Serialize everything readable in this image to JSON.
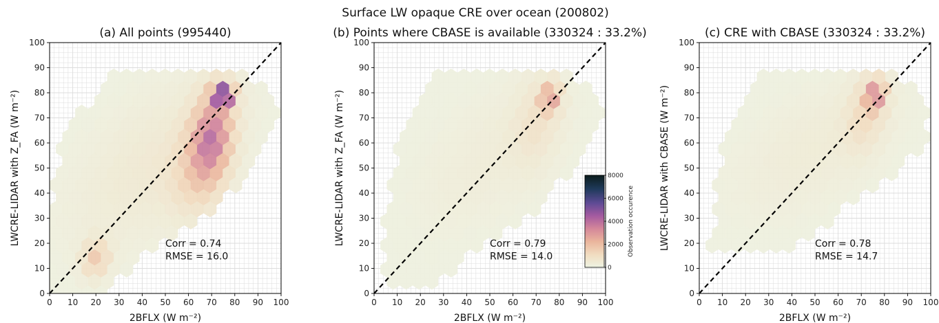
{
  "figure": {
    "suptitle": "Surface LW opaque CRE over ocean (200802)"
  },
  "colorbar": {
    "label": "Observation occurence",
    "ticks": [
      0,
      2000,
      4000,
      6000,
      8000
    ],
    "vmin": 0,
    "vmax": 8000
  },
  "colors": {
    "colormap": [
      "#eef3e2",
      "#f1dcc0",
      "#eab59c",
      "#d4879a",
      "#a45aa0",
      "#5d4a94",
      "#1f3a5b",
      "#0b1c1c"
    ],
    "reference_line": "#000000",
    "grid": "#dcdcdc"
  },
  "chart_data": [
    {
      "type": "heatmap",
      "subtype": "hexbin",
      "title": "(a) All points (995440)",
      "xlabel": "2BFLX (W m⁻²)",
      "ylabel": "LWCRE-LIDAR with Z_FA (W m⁻²)",
      "xlim": [
        0,
        100
      ],
      "ylim": [
        0,
        100
      ],
      "xticks": [
        "0",
        "10",
        "20",
        "30",
        "40",
        "50",
        "60",
        "70",
        "80",
        "90",
        "100"
      ],
      "yticks": [
        "0",
        "10",
        "20",
        "30",
        "40",
        "50",
        "60",
        "70",
        "80",
        "90",
        "100"
      ],
      "grid": true,
      "reference_line": "y = x (dashed)",
      "stats": {
        "corr": "Corr = 0.74",
        "rmse": "RMSE = 16.0"
      },
      "total_points": 995440,
      "density_clusters": [
        {
          "x": 45,
          "y": 52,
          "sx": 24,
          "sy": 22,
          "rho": 0.55,
          "peak": 450
        },
        {
          "x": 70,
          "y": 62,
          "sx": 6,
          "sy": 12,
          "rho": 0.2,
          "peak": 3400
        },
        {
          "x": 75,
          "y": 79,
          "sx": 3,
          "sy": 3,
          "rho": 0,
          "peak": 5600
        },
        {
          "x": 20,
          "y": 14,
          "sx": 4,
          "sy": 5,
          "rho": 0.1,
          "peak": 1500
        },
        {
          "x": 63,
          "y": 48,
          "sx": 8,
          "sy": 12,
          "rho": 0.2,
          "peak": 900
        }
      ],
      "support": [
        {
          "x": 0,
          "y": 0
        },
        {
          "x": 25,
          "y": 0
        },
        {
          "x": 50,
          "y": 22
        },
        {
          "x": 70,
          "y": 32
        },
        {
          "x": 90,
          "y": 50
        },
        {
          "x": 100,
          "y": 70
        },
        {
          "x": 97,
          "y": 80
        },
        {
          "x": 85,
          "y": 88
        },
        {
          "x": 25,
          "y": 88
        },
        {
          "x": 5,
          "y": 60
        },
        {
          "x": 0,
          "y": 30
        }
      ]
    },
    {
      "type": "heatmap",
      "subtype": "hexbin",
      "title": "(b) Points where CBASE is available (330324 : 33.2%)",
      "xlabel": "2BFLX (W m⁻²)",
      "ylabel": "LWCRE-LIDAR with Z_FA (W m⁻²)",
      "xlim": [
        0,
        100
      ],
      "ylim": [
        0,
        100
      ],
      "xticks": [
        "0",
        "10",
        "20",
        "30",
        "40",
        "50",
        "60",
        "70",
        "80",
        "90",
        "100"
      ],
      "yticks": [
        "0",
        "10",
        "20",
        "30",
        "40",
        "50",
        "60",
        "70",
        "80",
        "90",
        "100"
      ],
      "grid": true,
      "reference_line": "y = x (dashed)",
      "stats": {
        "corr": "Corr = 0.79",
        "rmse": "RMSE = 14.0"
      },
      "total_points": 330324,
      "density_clusters": [
        {
          "x": 50,
          "y": 55,
          "sx": 22,
          "sy": 20,
          "rho": 0.55,
          "peak": 250
        },
        {
          "x": 70,
          "y": 68,
          "sx": 7,
          "sy": 12,
          "rho": 0.2,
          "peak": 600
        },
        {
          "x": 76,
          "y": 78,
          "sx": 3,
          "sy": 4,
          "rho": 0.1,
          "peak": 2600
        }
      ],
      "support": [
        {
          "x": 5,
          "y": 0
        },
        {
          "x": 25,
          "y": 2
        },
        {
          "x": 50,
          "y": 22
        },
        {
          "x": 70,
          "y": 33
        },
        {
          "x": 90,
          "y": 55
        },
        {
          "x": 100,
          "y": 75
        },
        {
          "x": 95,
          "y": 83
        },
        {
          "x": 85,
          "y": 88
        },
        {
          "x": 25,
          "y": 88
        },
        {
          "x": 10,
          "y": 60
        },
        {
          "x": 2,
          "y": 20
        }
      ]
    },
    {
      "type": "heatmap",
      "subtype": "hexbin",
      "title": "(c) CRE with CBASE (330324 : 33.2%)",
      "xlabel": "2BFLX (W m⁻²)",
      "ylabel": "LWCRE-LIDAR with CBASE (W m⁻²)",
      "xlim": [
        0,
        100
      ],
      "ylim": [
        0,
        100
      ],
      "xticks": [
        "0",
        "10",
        "20",
        "30",
        "40",
        "50",
        "60",
        "70",
        "80",
        "90",
        "100"
      ],
      "yticks": [
        "0",
        "10",
        "20",
        "30",
        "40",
        "50",
        "60",
        "70",
        "80",
        "90",
        "100"
      ],
      "grid": true,
      "reference_line": "y = x (dashed)",
      "stats": {
        "corr": "Corr = 0.78",
        "rmse": "RMSE = 14.7"
      },
      "total_points": 330324,
      "density_clusters": [
        {
          "x": 50,
          "y": 58,
          "sx": 24,
          "sy": 18,
          "rho": 0.55,
          "peak": 300
        },
        {
          "x": 72,
          "y": 72,
          "sx": 6,
          "sy": 10,
          "rho": 0.25,
          "peak": 900
        },
        {
          "x": 76,
          "y": 79,
          "sx": 3,
          "sy": 4,
          "rho": 0.1,
          "peak": 3000
        }
      ],
      "support": [
        {
          "x": 5,
          "y": 18
        },
        {
          "x": 40,
          "y": 18
        },
        {
          "x": 60,
          "y": 32
        },
        {
          "x": 80,
          "y": 45
        },
        {
          "x": 97,
          "y": 60
        },
        {
          "x": 100,
          "y": 75
        },
        {
          "x": 95,
          "y": 83
        },
        {
          "x": 85,
          "y": 88
        },
        {
          "x": 25,
          "y": 88
        },
        {
          "x": 10,
          "y": 65
        }
      ]
    }
  ]
}
